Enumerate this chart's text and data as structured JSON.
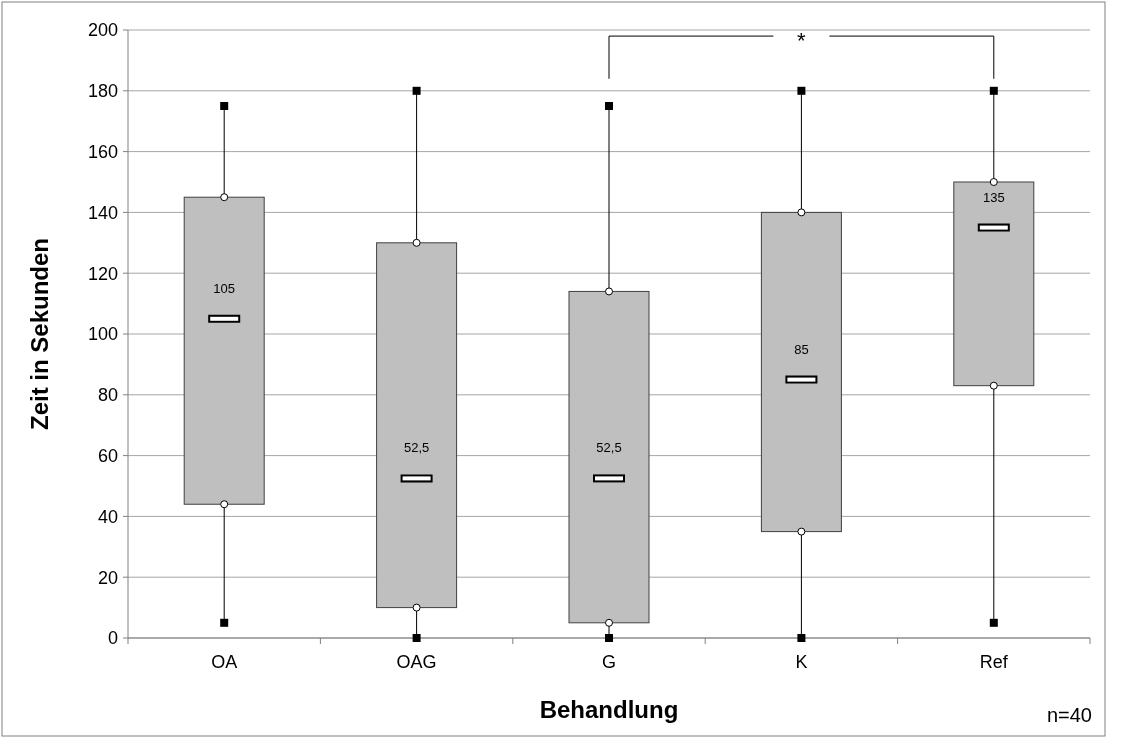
{
  "chart_data": {
    "type": "box",
    "xlabel": "Behandlung",
    "ylabel": "Zeit in Sekunden",
    "categories": [
      "OA",
      "OAG",
      "G",
      "K",
      "Ref"
    ],
    "boxes": [
      {
        "low": 5,
        "q1": 44,
        "median": 105,
        "q3": 145,
        "high": 175
      },
      {
        "low": 0,
        "q1": 10,
        "median": 52.5,
        "q3": 130,
        "high": 180
      },
      {
        "low": 0,
        "q1": 5,
        "median": 52.5,
        "q3": 114,
        "high": 175
      },
      {
        "low": 0,
        "q1": 35,
        "median": 85,
        "q3": 140,
        "high": 180
      },
      {
        "low": 5,
        "q1": 83,
        "median": 135,
        "q3": 150,
        "high": 180
      }
    ],
    "color": "#bfbfbf",
    "ylim": [
      0,
      200
    ],
    "yticks": [
      0,
      20,
      40,
      60,
      80,
      100,
      120,
      140,
      160,
      180,
      200
    ],
    "grid": "y",
    "annotations": [
      "*",
      "n=40",
      {
        "text": "105",
        "x": "OA",
        "y": 105
      },
      {
        "text": "52,5",
        "x": "OAG",
        "y": 52.5
      },
      {
        "text": "52,5",
        "x": "G",
        "y": 52.5
      },
      {
        "text": "85",
        "x": "K",
        "y": 85
      },
      {
        "text": "135",
        "x": "Ref",
        "y": 135
      }
    ]
  }
}
